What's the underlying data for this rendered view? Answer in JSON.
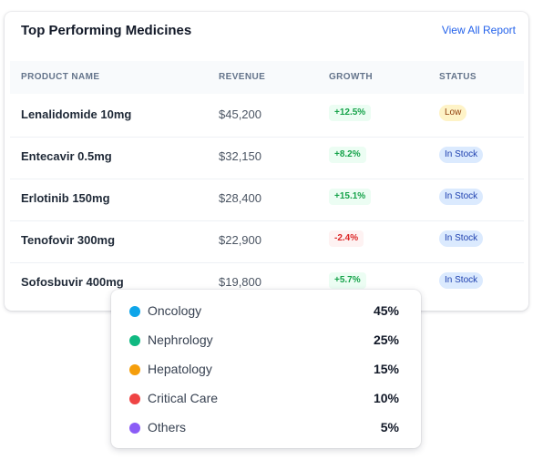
{
  "card": {
    "title": "Top Performing Medicines",
    "view_link": "View All Report",
    "columns": [
      "PRODUCT NAME",
      "REVENUE",
      "GROWTH",
      "STATUS"
    ],
    "rows": [
      {
        "name": "Lenalidomide 10mg",
        "revenue": "$45,200",
        "growth": "+12.5%",
        "status": "Low"
      },
      {
        "name": "Entecavir 0.5mg",
        "revenue": "$32,150",
        "growth": "+8.2%",
        "status": "In Stock"
      },
      {
        "name": "Erlotinib 150mg",
        "revenue": "$28,400",
        "growth": "+15.1%",
        "status": "In Stock"
      },
      {
        "name": "Tenofovir 300mg",
        "revenue": "$22,900",
        "growth": "-2.4%",
        "status": "In Stock"
      },
      {
        "name": "Sofosbuvir 400mg",
        "revenue": "$19,800",
        "growth": "+5.7%",
        "status": "In Stock"
      }
    ]
  },
  "legend": [
    {
      "label": "Oncology",
      "percent": "45%",
      "color": "#0ea5e9"
    },
    {
      "label": "Nephrology",
      "percent": "25%",
      "color": "#10b981"
    },
    {
      "label": "Hepatology",
      "percent": "15%",
      "color": "#f59e0b"
    },
    {
      "label": "Critical Care",
      "percent": "10%",
      "color": "#ef4444"
    },
    {
      "label": "Others",
      "percent": "5%",
      "color": "#8b5cf6"
    }
  ]
}
